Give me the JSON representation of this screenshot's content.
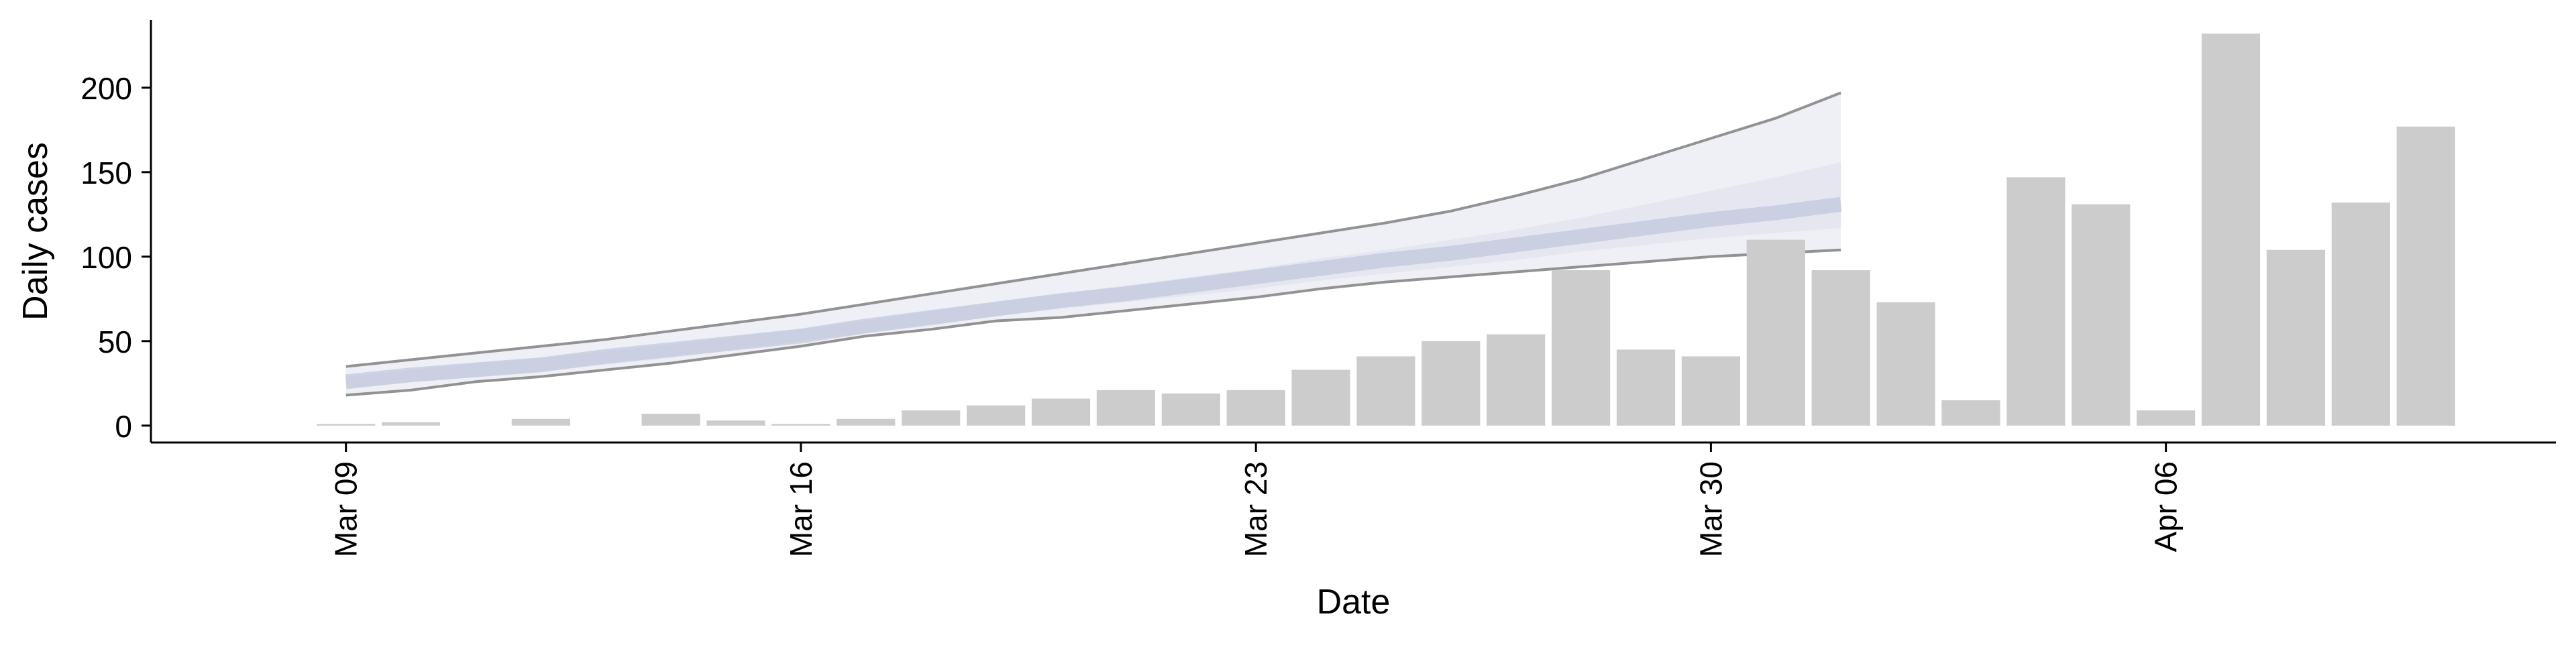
{
  "chart_data": {
    "type": "bar",
    "title": "",
    "xlabel": "Date",
    "ylabel": "Daily cases",
    "ylim": [
      -10,
      240
    ],
    "x_range": [
      "2020-03-06",
      "2020-04-12"
    ],
    "x_ticks": [
      {
        "date": "2020-03-09",
        "label": "Mar 09"
      },
      {
        "date": "2020-03-16",
        "label": "Mar 16"
      },
      {
        "date": "2020-03-23",
        "label": "Mar 23"
      },
      {
        "date": "2020-03-30",
        "label": "Mar 30"
      },
      {
        "date": "2020-04-06",
        "label": "Apr 06"
      }
    ],
    "y_ticks": [
      0,
      50,
      100,
      150,
      200
    ],
    "grid": false,
    "bar_color": "#cccccc",
    "bars": [
      {
        "date": "2020-03-09",
        "value": 1
      },
      {
        "date": "2020-03-10",
        "value": 2
      },
      {
        "date": "2020-03-12",
        "value": 4
      },
      {
        "date": "2020-03-14",
        "value": 7
      },
      {
        "date": "2020-03-15",
        "value": 3
      },
      {
        "date": "2020-03-16",
        "value": 1
      },
      {
        "date": "2020-03-17",
        "value": 4
      },
      {
        "date": "2020-03-18",
        "value": 9
      },
      {
        "date": "2020-03-19",
        "value": 12
      },
      {
        "date": "2020-03-20",
        "value": 16
      },
      {
        "date": "2020-03-21",
        "value": 21
      },
      {
        "date": "2020-03-22",
        "value": 19
      },
      {
        "date": "2020-03-23",
        "value": 21
      },
      {
        "date": "2020-03-24",
        "value": 33
      },
      {
        "date": "2020-03-25",
        "value": 41
      },
      {
        "date": "2020-03-26",
        "value": 50
      },
      {
        "date": "2020-03-27",
        "value": 54
      },
      {
        "date": "2020-03-28",
        "value": 92
      },
      {
        "date": "2020-03-29",
        "value": 45
      },
      {
        "date": "2020-03-30",
        "value": 41
      },
      {
        "date": "2020-03-31",
        "value": 110
      },
      {
        "date": "2020-04-01",
        "value": 92
      },
      {
        "date": "2020-04-02",
        "value": 73
      },
      {
        "date": "2020-04-03",
        "value": 15
      },
      {
        "date": "2020-04-04",
        "value": 147
      },
      {
        "date": "2020-04-05",
        "value": 131
      },
      {
        "date": "2020-04-06",
        "value": 9
      },
      {
        "date": "2020-04-07",
        "value": 232
      },
      {
        "date": "2020-04-08",
        "value": 104
      },
      {
        "date": "2020-04-09",
        "value": 132
      },
      {
        "date": "2020-04-10",
        "value": 177
      }
    ],
    "forecast": {
      "band_fill_color": "#dcdeeb",
      "inner_band_color": "#b9bfd8",
      "bound_line_color": "#808080",
      "points": [
        {
          "date": "2020-03-09",
          "lower": 18,
          "q25": 22,
          "median": 26,
          "q75": 29,
          "upper": 35
        },
        {
          "date": "2020-03-10",
          "lower": 21,
          "q25": 26,
          "median": 30,
          "q75": 33,
          "upper": 39
        },
        {
          "date": "2020-03-11",
          "lower": 26,
          "q25": 29,
          "median": 33,
          "q75": 37,
          "upper": 43
        },
        {
          "date": "2020-03-12",
          "lower": 29,
          "q25": 32,
          "median": 36,
          "q75": 40,
          "upper": 47
        },
        {
          "date": "2020-03-13",
          "lower": 33,
          "q25": 36,
          "median": 41,
          "q75": 44,
          "upper": 51
        },
        {
          "date": "2020-03-14",
          "lower": 37,
          "q25": 40,
          "median": 45,
          "q75": 48,
          "upper": 56
        },
        {
          "date": "2020-03-15",
          "lower": 42,
          "q25": 45,
          "median": 49,
          "q75": 53,
          "upper": 61
        },
        {
          "date": "2020-03-16",
          "lower": 47,
          "q25": 50,
          "median": 53,
          "q75": 57,
          "upper": 66
        },
        {
          "date": "2020-03-17",
          "lower": 53,
          "q25": 55,
          "median": 59,
          "q75": 62,
          "upper": 72
        },
        {
          "date": "2020-03-18",
          "lower": 57,
          "q25": 59,
          "median": 64,
          "q75": 68,
          "upper": 78
        },
        {
          "date": "2020-03-19",
          "lower": 62,
          "q25": 65,
          "median": 69,
          "q75": 73,
          "upper": 84
        },
        {
          "date": "2020-03-20",
          "lower": 64,
          "q25": 69,
          "median": 74,
          "q75": 78,
          "upper": 90
        },
        {
          "date": "2020-03-21",
          "lower": 68,
          "q25": 73,
          "median": 78,
          "q75": 83,
          "upper": 96
        },
        {
          "date": "2020-03-22",
          "lower": 72,
          "q25": 77,
          "median": 83,
          "q75": 88,
          "upper": 102
        },
        {
          "date": "2020-03-23",
          "lower": 76,
          "q25": 81,
          "median": 88,
          "q75": 93,
          "upper": 108
        },
        {
          "date": "2020-03-24",
          "lower": 81,
          "q25": 86,
          "median": 93,
          "q75": 99,
          "upper": 114
        },
        {
          "date": "2020-03-25",
          "lower": 85,
          "q25": 90,
          "median": 98,
          "q75": 104,
          "upper": 120
        },
        {
          "date": "2020-03-26",
          "lower": 88,
          "q25": 94,
          "median": 102,
          "q75": 110,
          "upper": 127
        },
        {
          "date": "2020-03-27",
          "lower": 91,
          "q25": 98,
          "median": 107,
          "q75": 116,
          "upper": 136
        },
        {
          "date": "2020-03-28",
          "lower": 94,
          "q25": 103,
          "median": 112,
          "q75": 123,
          "upper": 146
        },
        {
          "date": "2020-03-29",
          "lower": 97,
          "q25": 107,
          "median": 117,
          "q75": 131,
          "upper": 158
        },
        {
          "date": "2020-03-30",
          "lower": 100,
          "q25": 111,
          "median": 122,
          "q75": 139,
          "upper": 170
        },
        {
          "date": "2020-03-31",
          "lower": 102,
          "q25": 114,
          "median": 126,
          "q75": 147,
          "upper": 182
        },
        {
          "date": "2020-04-01",
          "lower": 104,
          "q25": 117,
          "median": 131,
          "q75": 156,
          "upper": 197
        }
      ]
    }
  }
}
